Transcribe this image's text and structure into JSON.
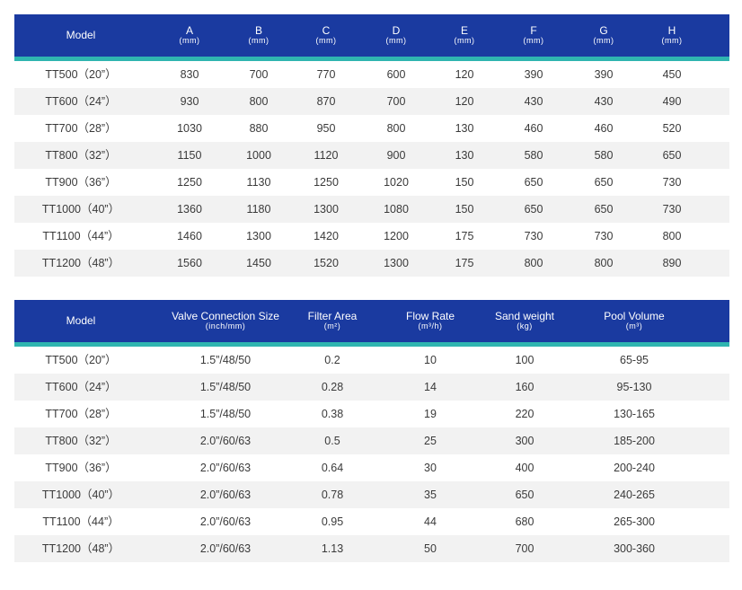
{
  "table1": {
    "headers": [
      {
        "label": "Model",
        "unit": ""
      },
      {
        "label": "A",
        "unit": "(mm)"
      },
      {
        "label": "B",
        "unit": "(mm)"
      },
      {
        "label": "C",
        "unit": "(mm)"
      },
      {
        "label": "D",
        "unit": "(mm)"
      },
      {
        "label": "E",
        "unit": "(mm)"
      },
      {
        "label": "F",
        "unit": "(mm)"
      },
      {
        "label": "G",
        "unit": "(mm)"
      },
      {
        "label": "H",
        "unit": "(mm)"
      }
    ],
    "rows": [
      [
        "TT500（20”）",
        "830",
        "700",
        "770",
        "600",
        "120",
        "390",
        "390",
        "450"
      ],
      [
        "TT600（24”）",
        "930",
        "800",
        "870",
        "700",
        "120",
        "430",
        "430",
        "490"
      ],
      [
        "TT700（28”）",
        "1030",
        "880",
        "950",
        "800",
        "130",
        "460",
        "460",
        "520"
      ],
      [
        "TT800（32”）",
        "1150",
        "1000",
        "1120",
        "900",
        "130",
        "580",
        "580",
        "650"
      ],
      [
        "TT900（36”）",
        "1250",
        "1130",
        "1250",
        "1020",
        "150",
        "650",
        "650",
        "730"
      ],
      [
        "TT1000（40”）",
        "1360",
        "1180",
        "1300",
        "1080",
        "150",
        "650",
        "650",
        "730"
      ],
      [
        "TT1100（44”）",
        "1460",
        "1300",
        "1420",
        "1200",
        "175",
        "730",
        "730",
        "800"
      ],
      [
        "TT1200（48”）",
        "1560",
        "1450",
        "1520",
        "1300",
        "175",
        "800",
        "800",
        "890"
      ]
    ]
  },
  "table2": {
    "headers": [
      {
        "label": "Model",
        "unit": ""
      },
      {
        "label": "Valve Connection Size",
        "unit": "(inch/mm)"
      },
      {
        "label": "Filter Area",
        "unit": "(m²)"
      },
      {
        "label": "Flow Rate",
        "unit": "(m³/h)"
      },
      {
        "label": "Sand weight",
        "unit": "(kg)"
      },
      {
        "label": "Pool Volume",
        "unit": "(m³)"
      }
    ],
    "rows": [
      [
        "TT500（20”）",
        "1.5”/48/50",
        "0.2",
        "10",
        "100",
        "65-95"
      ],
      [
        "TT600（24”）",
        "1.5”/48/50",
        "0.28",
        "14",
        "160",
        "95-130"
      ],
      [
        "TT700（28”）",
        "1.5”/48/50",
        "0.38",
        "19",
        "220",
        "130-165"
      ],
      [
        "TT800（32”）",
        "2.0”/60/63",
        "0.5",
        "25",
        "300",
        "185-200"
      ],
      [
        "TT900（36”）",
        "2.0”/60/63",
        "0.64",
        "30",
        "400",
        "200-240"
      ],
      [
        "TT1000（40”）",
        "2.0”/60/63",
        "0.78",
        "35",
        "650",
        "240-265"
      ],
      [
        "TT1100（44”）",
        "2.0”/60/63",
        "0.95",
        "44",
        "680",
        "265-300"
      ],
      [
        "TT1200（48”）",
        "2.0”/60/63",
        "1.13",
        "50",
        "700",
        "300-360"
      ]
    ]
  },
  "colors": {
    "header_bg": "#1a3aa0",
    "accent_stripe": "#2fb5b0",
    "alt_row": "#f2f2f2"
  }
}
